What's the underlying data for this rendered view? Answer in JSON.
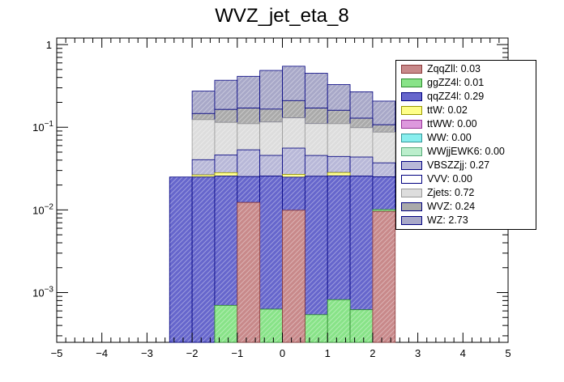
{
  "chart_data": {
    "type": "bar",
    "stacked": true,
    "title": "WVZ_jet_eta_8",
    "xlabel": "",
    "ylabel": "",
    "y_scale": "log",
    "xlim": [
      -5,
      5
    ],
    "ylim": [
      0.00025,
      1.2
    ],
    "x_ticks": [
      "−5",
      "−4",
      "−3",
      "−2",
      "−1",
      "0",
      "1",
      "2",
      "3",
      "4",
      "5"
    ],
    "y_ticks": [
      {
        "value": 1,
        "base": "1",
        "exp": ""
      },
      {
        "value": 0.1,
        "base": "10",
        "exp": "−1"
      },
      {
        "value": 0.01,
        "base": "10",
        "exp": "−2"
      },
      {
        "value": 0.001,
        "base": "10",
        "exp": "−3"
      }
    ],
    "legend_position": "top-right",
    "bin_edges": [
      -2.5,
      -2.0,
      -1.5,
      -1.0,
      -0.5,
      0.0,
      0.5,
      1.0,
      1.5,
      2.0,
      2.5
    ],
    "series": [
      {
        "name": "ZqqZll",
        "legend": "ZqqZll: 0.03",
        "color": "#c8898a",
        "stroke": "#8b3a3a",
        "values": [
          0.0,
          0.0,
          0.0,
          0.0123,
          0.0,
          0.0099,
          0.0,
          0.0,
          0.0,
          0.0096
        ]
      },
      {
        "name": "ggZZ4l",
        "legend": "ggZZ4l: 0.01",
        "color": "#88e388",
        "stroke": "#2e8b2e",
        "values": [
          0.0,
          0.0,
          0.0007,
          0.0,
          0.00063,
          0.0,
          0.00054,
          0.00082,
          0.00062,
          0.0005
        ]
      },
      {
        "name": "qqZZ4l",
        "legend": "qqZZ4l: 0.29",
        "color": "#6666cc",
        "stroke": "#000080",
        "values": [
          0.025,
          0.025,
          0.025,
          0.013,
          0.025,
          0.015,
          0.025,
          0.025,
          0.025,
          0.015
        ]
      },
      {
        "name": "ttW",
        "legend": "ttW: 0.02",
        "color": "#ffff88",
        "stroke": "#999900",
        "values": [
          0.0,
          0.0015,
          0.0025,
          0.0,
          0.0,
          0.002,
          0.0,
          0.0025,
          0.0,
          0.0
        ]
      },
      {
        "name": "ttWW",
        "legend": "ttWW: 0.00",
        "color": "#dd99dd",
        "stroke": "#993399",
        "values": [
          0,
          0,
          0,
          0,
          0,
          0,
          0,
          0,
          0,
          0
        ]
      },
      {
        "name": "WW",
        "legend": "WW: 0.00",
        "color": "#88eeee",
        "stroke": "#339999",
        "values": [
          0,
          0,
          0,
          0,
          0,
          0,
          0,
          0,
          0,
          0
        ]
      },
      {
        "name": "WWjjEWK6",
        "legend": "WWjjEWK6: 0.00",
        "color": "#bbeecc",
        "stroke": "#55aa77",
        "values": [
          0,
          0,
          0,
          0,
          0,
          0,
          0,
          0,
          0,
          0
        ]
      },
      {
        "name": "VBSZZjj",
        "legend": "VBSZZjj: 0.27",
        "color": "#b8b8d8",
        "stroke": "#000080",
        "values": [
          0.0,
          0.014,
          0.018,
          0.028,
          0.02,
          0.029,
          0.02,
          0.016,
          0.018,
          0.012
        ]
      },
      {
        "name": "VVV",
        "legend": "VVV: 0.00",
        "color": "#ffffff",
        "stroke": "#000080",
        "values": [
          0,
          0,
          0,
          0,
          0,
          0,
          0,
          0,
          0,
          0
        ]
      },
      {
        "name": "Zjets",
        "legend": "Zjets: 0.72",
        "color": "#dddddd",
        "stroke": "#999999",
        "values": [
          0.0,
          0.083,
          0.068,
          0.057,
          0.07,
          0.074,
          0.065,
          0.066,
          0.055,
          0.05
        ]
      },
      {
        "name": "WVZ",
        "legend": "WVZ: 0.24",
        "color": "#aaaaaa",
        "stroke": "#000080",
        "values": [
          0.0,
          0.023,
          0.05,
          0.06,
          0.05,
          0.08,
          0.06,
          0.05,
          0.03,
          0.02
        ]
      },
      {
        "name": "WZ",
        "legend": "WZ: 2.73",
        "color": "#a8a8c8",
        "stroke": "#000080",
        "values": [
          0.0,
          0.127,
          0.206,
          0.243,
          0.321,
          0.337,
          0.279,
          0.168,
          0.14,
          0.1
        ]
      }
    ]
  }
}
